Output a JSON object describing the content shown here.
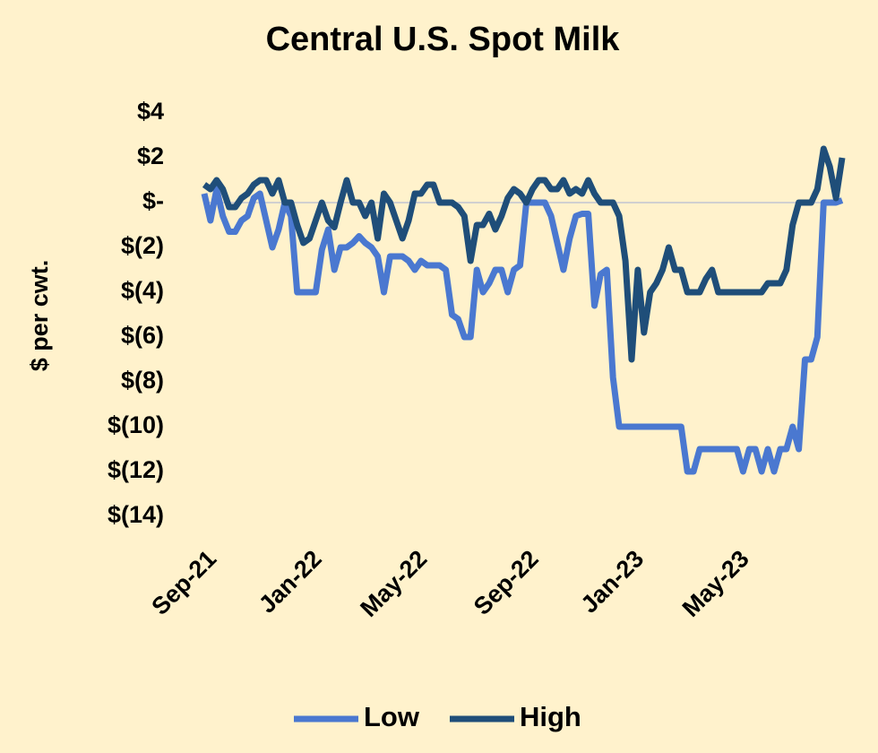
{
  "chart_data": {
    "type": "line",
    "title": "Central U.S. Spot Milk",
    "y_label": "$ per cwt.",
    "categories": [
      "Sep-21",
      null,
      null,
      null,
      null,
      null,
      null,
      null,
      null,
      null,
      null,
      null,
      null,
      null,
      null,
      null,
      null,
      "Jan-22",
      null,
      null,
      null,
      null,
      null,
      null,
      null,
      null,
      null,
      null,
      null,
      null,
      null,
      null,
      null,
      null,
      "May-22",
      null,
      null,
      null,
      null,
      null,
      null,
      null,
      null,
      null,
      null,
      null,
      null,
      null,
      null,
      null,
      null,
      null,
      "Sep-22",
      null,
      null,
      null,
      null,
      null,
      null,
      null,
      null,
      null,
      null,
      null,
      null,
      null,
      null,
      null,
      null,
      "Jan-23",
      null,
      null,
      null,
      null,
      null,
      null,
      null,
      null,
      null,
      null,
      null,
      null,
      null,
      null,
      null,
      null,
      "May-23",
      null,
      null,
      null,
      null,
      null,
      null,
      null,
      null,
      null,
      null,
      null,
      null,
      null,
      null,
      null,
      null,
      null
    ],
    "series": [
      {
        "name": "Low",
        "color": "#4a78d0",
        "values": [
          0.4,
          -0.8,
          0.6,
          -0.6,
          -1.3,
          -1.3,
          -0.8,
          -0.6,
          0.2,
          0.4,
          -0.8,
          -2,
          -1.2,
          0,
          -0.6,
          -4,
          -4,
          -4,
          -4,
          -2.1,
          -1.2,
          -3,
          -2,
          -2,
          -1.8,
          -1.5,
          -1.8,
          -2,
          -2.4,
          -4,
          -2.4,
          -2.4,
          -2.4,
          -2.6,
          -3,
          -2.6,
          -2.8,
          -2.8,
          -2.8,
          -3,
          -5,
          -5.2,
          -6,
          -6,
          -3,
          -4,
          -3.6,
          -3,
          -3,
          -4,
          -3,
          -2.8,
          0,
          0,
          0,
          0,
          -0.6,
          -1.8,
          -3,
          -1.6,
          -0.6,
          -0.5,
          -0.5,
          -4.6,
          -3.2,
          -3,
          -7.8,
          -10,
          -10,
          -10,
          -10,
          -10,
          -10,
          -10,
          -10,
          -10,
          -10,
          -10,
          -12,
          -12,
          -11,
          -11,
          -11,
          -11,
          -11,
          -11,
          -11,
          -12,
          -11,
          -11,
          -12,
          -11,
          -12,
          -11,
          -11,
          -10,
          -11,
          -7,
          -7,
          -6,
          0,
          0,
          0,
          0.1
        ]
      },
      {
        "name": "High",
        "color": "#1f4e79",
        "values": [
          0.8,
          0.6,
          1,
          0.6,
          -0.2,
          -0.2,
          0.2,
          0.4,
          0.8,
          1,
          1,
          0.4,
          1,
          0,
          0,
          -1,
          -1.8,
          -1.6,
          -0.8,
          0,
          -0.8,
          -1.1,
          0,
          1,
          0,
          0,
          -0.6,
          0,
          -1.6,
          0.4,
          0,
          -0.8,
          -1.6,
          -0.8,
          0.4,
          0.4,
          0.8,
          0.8,
          0,
          0,
          0,
          -0.2,
          -0.6,
          -2.6,
          -1,
          -1,
          -0.5,
          -1.2,
          -0.6,
          0.2,
          0.6,
          0.4,
          0,
          0.6,
          1,
          1,
          0.6,
          0.6,
          1,
          0.4,
          0.6,
          0.4,
          1,
          0.4,
          0,
          0,
          0,
          -0.6,
          -2.6,
          -7,
          -3,
          -5.8,
          -4,
          -3.6,
          -3,
          -2,
          -3,
          -3,
          -4,
          -4,
          -4,
          -3.4,
          -3,
          -4,
          -4,
          -4,
          -4,
          -4,
          -4,
          -4,
          -4,
          -3.6,
          -3.6,
          -3.6,
          -3,
          -1,
          0,
          0,
          0,
          0.6,
          2.4,
          1.6,
          0.2,
          2
        ]
      }
    ],
    "ylim": [
      -14,
      4
    ],
    "yticks": [
      {
        "value": 4,
        "label": "$4"
      },
      {
        "value": 2,
        "label": "$2"
      },
      {
        "value": 0,
        "label": "$-"
      },
      {
        "value": -2,
        "label": "$(2)"
      },
      {
        "value": -4,
        "label": "$(4)"
      },
      {
        "value": -6,
        "label": "$(6)"
      },
      {
        "value": -8,
        "label": "$(8)"
      },
      {
        "value": -10,
        "label": "$(10)"
      },
      {
        "value": -12,
        "label": "$(12)"
      },
      {
        "value": -14,
        "label": "$(14)"
      }
    ],
    "legend": "bottom"
  }
}
